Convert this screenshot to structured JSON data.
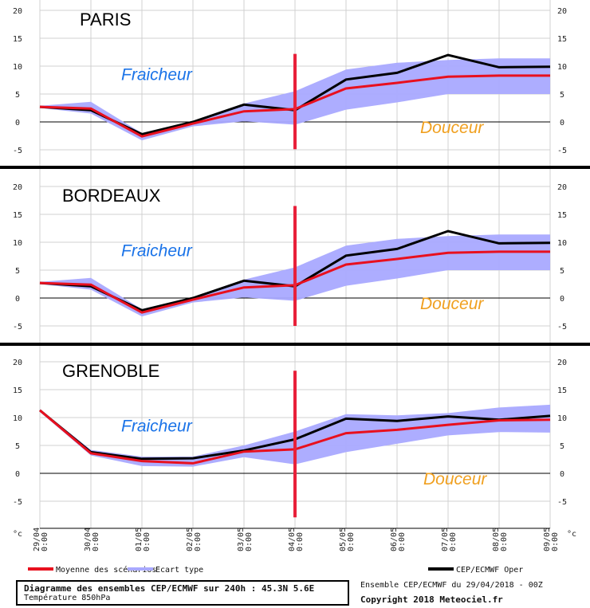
{
  "chart_data": {
    "type": "line",
    "x": [
      "29/04",
      "30/04",
      "01/05",
      "02/05",
      "03/05",
      "04/05",
      "05/05",
      "06/05",
      "07/05",
      "08/05",
      "09/05"
    ],
    "x_time": "0:00",
    "yticks": [
      20,
      15,
      10,
      5,
      0,
      -5
    ],
    "ylim": [
      -8,
      21
    ],
    "y_unit": "°c",
    "grid": true,
    "legend_placement": "bottom",
    "legend": {
      "mean": "Moyenne des scénarios",
      "spread": "Ecart type",
      "oper": "CEP/ECMWF Oper"
    },
    "colors": {
      "mean": "#e8101e",
      "spread": "#a9a9ff",
      "oper": "#000000",
      "fraicheur": "#1a73e8",
      "douceur": "#f0a020",
      "marker": "#e8203a"
    },
    "panels": [
      {
        "title": "PARIS",
        "annotations": {
          "cold": "Fraicheur",
          "warm": "Douceur"
        },
        "marker": {
          "date": "04/05",
          "from": -4.9,
          "to": 12.2
        },
        "mean": [
          2.7,
          2.4,
          -2.6,
          -0.3,
          1.9,
          2.3,
          6.0,
          7.0,
          8.1,
          8.3,
          8.3
        ],
        "oper": [
          2.7,
          2.1,
          -2.2,
          0.0,
          3.1,
          2.1,
          7.6,
          8.8,
          12.0,
          9.8,
          9.9
        ],
        "spread_upper": [
          2.9,
          3.6,
          -2.0,
          0.2,
          3.3,
          5.5,
          9.4,
          10.6,
          11.1,
          11.4,
          11.4
        ],
        "spread_lower": [
          2.5,
          1.5,
          -3.3,
          -0.8,
          0.1,
          -0.5,
          2.2,
          3.5,
          5.0,
          5.0,
          5.0
        ]
      },
      {
        "title": "BORDEAUX",
        "annotations": {
          "cold": "Fraicheur",
          "warm": "Douceur"
        },
        "marker": {
          "date": "04/05",
          "from": -5.0,
          "to": 16.5
        },
        "mean": [
          2.7,
          2.4,
          -2.6,
          -0.3,
          1.9,
          2.3,
          6.0,
          7.0,
          8.1,
          8.3,
          8.3
        ],
        "oper": [
          2.7,
          2.1,
          -2.2,
          0.0,
          3.1,
          2.1,
          7.6,
          8.8,
          12.0,
          9.8,
          9.9
        ],
        "spread_upper": [
          2.9,
          3.6,
          -2.0,
          0.2,
          3.3,
          5.5,
          9.4,
          10.6,
          11.1,
          11.4,
          11.4
        ],
        "spread_lower": [
          2.5,
          1.5,
          -3.3,
          -0.8,
          0.1,
          -0.5,
          2.2,
          3.5,
          5.0,
          5.0,
          5.0
        ]
      },
      {
        "title": "GRENOBLE",
        "annotations": {
          "cold": "Fraicheur",
          "warm": "Douceur"
        },
        "marker": {
          "date": "04/05",
          "from": -7.9,
          "to": 18.4
        },
        "mean": [
          11.3,
          3.6,
          2.2,
          1.8,
          3.9,
          4.3,
          7.2,
          7.8,
          8.7,
          9.5,
          9.6
        ],
        "oper": [
          11.3,
          3.8,
          2.6,
          2.7,
          4.1,
          6.1,
          9.8,
          9.4,
          10.2,
          9.6,
          10.3
        ],
        "spread_upper": [
          11.5,
          4.2,
          3.0,
          3.0,
          5.0,
          7.5,
          10.6,
          10.4,
          10.8,
          11.8,
          12.3
        ],
        "spread_lower": [
          11.0,
          3.2,
          1.3,
          1.2,
          2.9,
          1.6,
          3.8,
          5.3,
          6.8,
          7.4,
          7.3
        ]
      }
    ]
  },
  "footer": {
    "title": "Diagramme des ensembles CEP/ECMWF sur 240h : 45.3N 5.6E",
    "subtitle": "Température 850hPa",
    "ensemble": "Ensemble CEP/ECMWF du 29/04/2018 - 00Z",
    "copyright": "Copyright 2018 Meteociel.fr"
  }
}
